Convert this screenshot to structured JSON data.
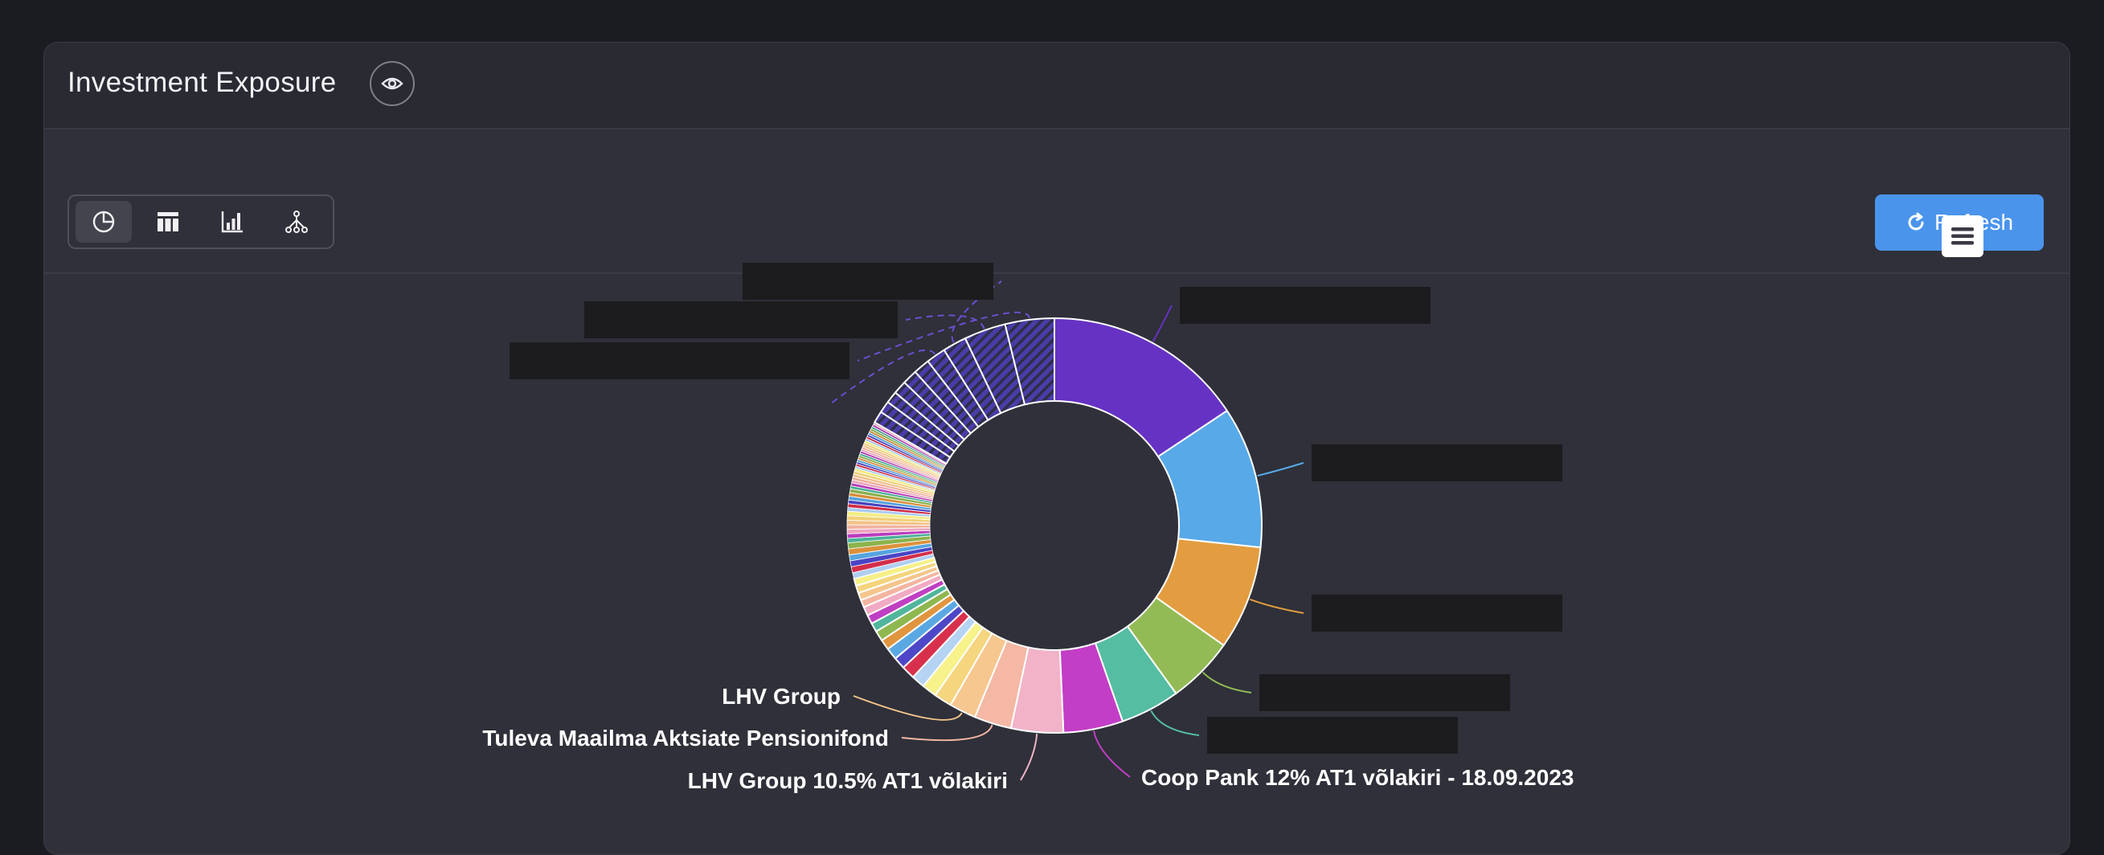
{
  "header": {
    "title": "Investment Exposure"
  },
  "toolbar": {
    "views": [
      {
        "name": "pie-view",
        "icon": "pie-chart-icon",
        "active": true
      },
      {
        "name": "table-view",
        "icon": "table-icon",
        "active": false
      },
      {
        "name": "bar-view",
        "icon": "bar-chart-icon",
        "active": false
      },
      {
        "name": "tree-view",
        "icon": "tree-icon",
        "active": false
      }
    ],
    "refresh_label": "Refresh",
    "refresh_icon": "refresh-icon"
  },
  "colors": {
    "accent": "#4a94ec",
    "card_bg": "#2f3039",
    "page_bg": "#1b1c21"
  },
  "chart_data": {
    "type": "pie",
    "variant": "donut",
    "title": "",
    "slices": [
      {
        "name": "",
        "value": 13.5,
        "color": "#6632c4",
        "label": "redacted"
      },
      {
        "name": "",
        "value": 9.5,
        "color": "#57a9e8",
        "label": "redacted"
      },
      {
        "name": "",
        "value": 7.0,
        "color": "#e39d40",
        "label": "redacted"
      },
      {
        "name": "",
        "value": 4.5,
        "color": "#93bb55",
        "label": "redacted"
      },
      {
        "name": "",
        "value": 4.0,
        "color": "#55bda2",
        "label": "redacted"
      },
      {
        "name": "Coop Pank 12% AT1 võlakiri - 18.09.2023",
        "value": 4.0,
        "color": "#c23ec6",
        "label": "shown"
      },
      {
        "name": "LHV Group 10.5% AT1 võlakiri",
        "value": 3.5,
        "color": "#f2b3c8",
        "label": "shown"
      },
      {
        "name": "Tuleva Maailma Aktsiate Pensionifond",
        "value": 2.5,
        "color": "#f4b8a4",
        "label": "shown"
      },
      {
        "name": "LHV Group",
        "value": 1.8,
        "color": "#f6c78e",
        "label": "shown"
      },
      {
        "name": "",
        "value": 1.2,
        "color": "#f5d57e",
        "label": "none"
      },
      {
        "name": "",
        "value": 1.0,
        "color": "#f7f28a",
        "label": "none"
      },
      {
        "name": "",
        "value": 0.9,
        "color": "#b5d3f2",
        "label": "none"
      },
      {
        "name": "",
        "value": 0.9,
        "color": "#d8304c",
        "label": "none"
      },
      {
        "name": "",
        "value": 0.8,
        "color": "#4d47c8",
        "label": "none"
      },
      {
        "name": "",
        "value": 0.8,
        "color": "#5aa8e3",
        "label": "none"
      },
      {
        "name": "",
        "value": 0.7,
        "color": "#e0953e",
        "label": "none"
      },
      {
        "name": "",
        "value": 0.7,
        "color": "#8fb74f",
        "label": "none"
      },
      {
        "name": "",
        "value": 0.6,
        "color": "#4fb69c",
        "label": "none"
      },
      {
        "name": "",
        "value": 0.6,
        "color": "#bf3fc2",
        "label": "none"
      },
      {
        "name": "",
        "value": 0.6,
        "color": "#f1aac3",
        "label": "none"
      },
      {
        "name": "",
        "value": 0.5,
        "color": "#f3b5a1",
        "label": "none"
      },
      {
        "name": "",
        "value": 0.5,
        "color": "#f5c58c",
        "label": "none"
      },
      {
        "name": "",
        "value": 0.5,
        "color": "#f4d47c",
        "label": "none"
      },
      {
        "name": "",
        "value": 0.5,
        "color": "#f6f087",
        "label": "none"
      },
      {
        "name": "",
        "value": 0.4,
        "color": "#b0cff0",
        "label": "none"
      },
      {
        "name": "",
        "value": 0.4,
        "color": "#d42e4a",
        "label": "none"
      },
      {
        "name": "",
        "value": 0.4,
        "color": "#4a44c4",
        "label": "none"
      },
      {
        "name": "",
        "value": 0.4,
        "color": "#56a4df",
        "label": "none"
      },
      {
        "name": "",
        "value": 0.4,
        "color": "#dc913b",
        "label": "none"
      },
      {
        "name": "",
        "value": 0.4,
        "color": "#8cb34c",
        "label": "none"
      },
      {
        "name": "",
        "value": 0.3,
        "color": "#4cb298",
        "label": "none"
      },
      {
        "name": "",
        "value": 0.3,
        "color": "#ba3cbd",
        "label": "none"
      },
      {
        "name": "",
        "value": 0.3,
        "color": "#eea6c0",
        "label": "none"
      },
      {
        "name": "",
        "value": 0.3,
        "color": "#f0b29e",
        "label": "none"
      },
      {
        "name": "",
        "value": 0.3,
        "color": "#f2c289",
        "label": "none"
      },
      {
        "name": "",
        "value": 0.3,
        "color": "#f1d179",
        "label": "none"
      },
      {
        "name": "",
        "value": 0.3,
        "color": "#f3ed84",
        "label": "none"
      },
      {
        "name": "",
        "value": 0.25,
        "color": "#abcaee",
        "label": "none"
      },
      {
        "name": "",
        "value": 0.25,
        "color": "#d02c47",
        "label": "none"
      },
      {
        "name": "",
        "value": 0.25,
        "color": "#4742bf",
        "label": "none"
      },
      {
        "name": "",
        "value": 0.25,
        "color": "#53a1db",
        "label": "none"
      },
      {
        "name": "",
        "value": 0.25,
        "color": "#d88d39",
        "label": "none"
      },
      {
        "name": "",
        "value": 0.25,
        "color": "#89af49",
        "label": "none"
      },
      {
        "name": "",
        "value": 0.2,
        "color": "#49ae95",
        "label": "none"
      },
      {
        "name": "",
        "value": 0.2,
        "color": "#b53ab8",
        "label": "none"
      },
      {
        "name": "",
        "value": 0.2,
        "color": "#eba2bd",
        "label": "none"
      },
      {
        "name": "",
        "value": 0.2,
        "color": "#edaf9b",
        "label": "none"
      },
      {
        "name": "",
        "value": 0.2,
        "color": "#efbf86",
        "label": "none"
      },
      {
        "name": "",
        "value": 0.2,
        "color": "#eece76",
        "label": "none"
      },
      {
        "name": "",
        "value": 0.2,
        "color": "#f0ea81",
        "label": "none"
      },
      {
        "name": "",
        "value": 0.15,
        "color": "#a6c6eb",
        "label": "none"
      },
      {
        "name": "",
        "value": 0.15,
        "color": "#cc2a44",
        "label": "none"
      },
      {
        "name": "",
        "value": 0.15,
        "color": "#4440bb",
        "label": "none"
      },
      {
        "name": "",
        "value": 0.15,
        "color": "#509dd7",
        "label": "none"
      },
      {
        "name": "",
        "value": 0.15,
        "color": "#d48936",
        "label": "none"
      },
      {
        "name": "",
        "value": 0.15,
        "color": "#86ab46",
        "label": "none"
      },
      {
        "name": "",
        "value": 0.15,
        "color": "#46aa92",
        "label": "none"
      },
      {
        "name": "",
        "value": 0.15,
        "color": "#b038b3",
        "label": "none"
      },
      {
        "name": "",
        "value": 0.15,
        "color": "#e89eba",
        "label": "none"
      },
      {
        "name": "",
        "value": 0.15,
        "color": "#eaac98",
        "label": "none"
      },
      {
        "name": "",
        "value": 0.15,
        "color": "#ecbc83",
        "label": "none"
      },
      {
        "name": "",
        "value": 0.15,
        "color": "#ebcb73",
        "label": "none"
      },
      {
        "name": "",
        "value": 0.15,
        "color": "#ede77e",
        "label": "none"
      },
      {
        "name": "",
        "value": 0.15,
        "color": "#a1c2e8",
        "label": "none"
      },
      {
        "name": "",
        "value": 0.15,
        "color": "#c82841",
        "label": "none"
      },
      {
        "name": "",
        "value": 0.15,
        "color": "#413eb6",
        "label": "none"
      },
      {
        "name": "",
        "value": 0.15,
        "color": "#4d99d3",
        "label": "none"
      },
      {
        "name": "",
        "value": 0.15,
        "color": "#d08533",
        "label": "none"
      },
      {
        "name": "",
        "value": 0.15,
        "color": "#83a743",
        "label": "none"
      },
      {
        "name": "",
        "value": 0.15,
        "color": "#43a68f",
        "label": "none"
      },
      {
        "name": "",
        "value": 0.15,
        "color": "#ab36ae",
        "label": "none"
      },
      {
        "name": "",
        "value": 0.15,
        "color": "#e59ab7",
        "label": "none"
      },
      {
        "name": "",
        "value": 0.8,
        "color": "#6b4fd0",
        "label": "none",
        "hatched": true
      },
      {
        "name": "",
        "value": 0.8,
        "color": "#6b4fd0",
        "label": "none",
        "hatched": true
      },
      {
        "name": "",
        "value": 0.8,
        "color": "#6b4fd0",
        "label": "none",
        "hatched": true
      },
      {
        "name": "",
        "value": 0.9,
        "color": "#6b4fd0",
        "label": "none",
        "hatched": true
      },
      {
        "name": "",
        "value": 1.0,
        "color": "#6b4fd0",
        "label": "none",
        "hatched": true
      },
      {
        "name": "",
        "value": 1.1,
        "color": "#6b4fd0",
        "label": "none",
        "hatched": true
      },
      {
        "name": "",
        "value": 1.3,
        "color": "#6b4fd0",
        "label": "none",
        "hatched": true
      },
      {
        "name": "",
        "value": 1.6,
        "color": "#6b4fd0",
        "label": "redacted",
        "hatched": true
      },
      {
        "name": "",
        "value": 2.8,
        "color": "#6b4fd0",
        "label": "redacted",
        "hatched": true
      },
      {
        "name": "",
        "value": 3.3,
        "color": "#6b4fd0",
        "label": "redacted",
        "hatched": true
      }
    ]
  }
}
